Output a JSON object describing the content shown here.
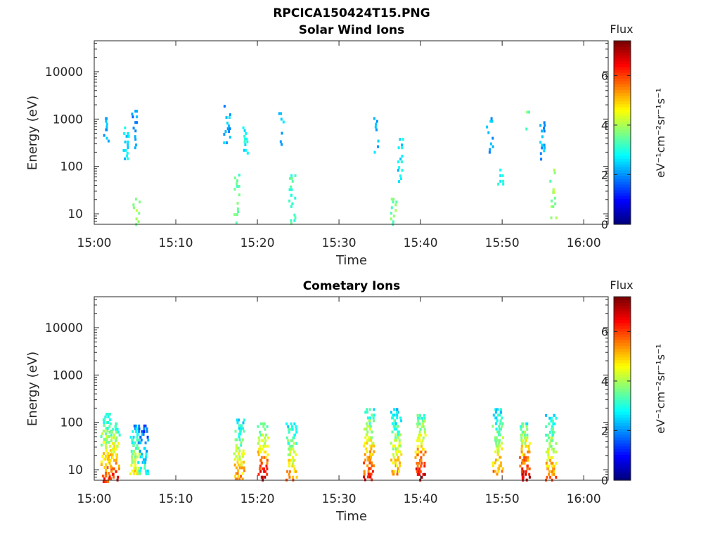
{
  "figure_title": "RPCICA150424T15.PNG",
  "colormap": {
    "stops": [
      "#00007f",
      "#0000ff",
      "#007fff",
      "#00ffff",
      "#7fff7f",
      "#ffff00",
      "#ff7f00",
      "#ff0000",
      "#7f0000"
    ]
  },
  "chart_data": [
    {
      "type": "heatmap",
      "title": "Solar Wind Ions",
      "xlabel": "Time",
      "ylabel": "Energy (eV)",
      "x_unit": "time (HH:MM, 24 Apr 2015)",
      "xlim": [
        "15:00",
        "16:03"
      ],
      "xticks": [
        "15:00",
        "15:10",
        "15:20",
        "15:30",
        "15:40",
        "15:50",
        "16:00"
      ],
      "yscale": "log",
      "ylim": [
        6,
        45000
      ],
      "yticks": [
        "10",
        "100",
        "1000",
        "10000"
      ],
      "colorbar": {
        "title": "Flux",
        "label": "eV⁻¹cm⁻²sr⁻¹s⁻¹",
        "range": [
          0,
          7.4
        ],
        "ticks": [
          "0",
          "2",
          "4",
          "6"
        ]
      },
      "bursts": [
        {
          "t": "15:01.5",
          "e_min": 300,
          "e_max": 1100,
          "flux": 2.2
        },
        {
          "t": "15:04.0",
          "e_min": 150,
          "e_max": 800,
          "flux": 2.6
        },
        {
          "t": "15:05.0",
          "e_min": 250,
          "e_max": 1800,
          "flux": 2.0
        },
        {
          "t": "15:05.2",
          "e_min": 6,
          "e_max": 25,
          "flux": 3.8
        },
        {
          "t": "15:16.3",
          "e_min": 300,
          "e_max": 2000,
          "flux": 2.2
        },
        {
          "t": "15:17.5",
          "e_min": 6,
          "e_max": 70,
          "flux": 3.4
        },
        {
          "t": "15:18.5",
          "e_min": 200,
          "e_max": 700,
          "flux": 2.8
        },
        {
          "t": "15:23.0",
          "e_min": 300,
          "e_max": 1400,
          "flux": 2.4
        },
        {
          "t": "15:24.3",
          "e_min": 6,
          "e_max": 90,
          "flux": 3.2
        },
        {
          "t": "15:34.5",
          "e_min": 200,
          "e_max": 1100,
          "flux": 2.4
        },
        {
          "t": "15:36.7",
          "e_min": 6,
          "e_max": 25,
          "flux": 3.6
        },
        {
          "t": "15:37.5",
          "e_min": 50,
          "e_max": 400,
          "flux": 2.6
        },
        {
          "t": "15:48.5",
          "e_min": 200,
          "e_max": 1100,
          "flux": 2.2
        },
        {
          "t": "15:49.8",
          "e_min": 40,
          "e_max": 90,
          "flux": 2.8
        },
        {
          "t": "15:53.0",
          "e_min": 500,
          "e_max": 1500,
          "flux": 3.6
        },
        {
          "t": "15:55.0",
          "e_min": 150,
          "e_max": 900,
          "flux": 2.2
        },
        {
          "t": "15:56.3",
          "e_min": 7,
          "e_max": 90,
          "flux": 3.8
        }
      ]
    },
    {
      "type": "heatmap",
      "title": "Cometary Ions",
      "xlabel": "Time",
      "ylabel": "Energy (eV)",
      "x_unit": "time (HH:MM, 24 Apr 2015)",
      "xlim": [
        "15:00",
        "16:03"
      ],
      "xticks": [
        "15:00",
        "15:10",
        "15:20",
        "15:30",
        "15:40",
        "15:50",
        "16:00"
      ],
      "yscale": "log",
      "ylim": [
        6,
        45000
      ],
      "yticks": [
        "10",
        "100",
        "1000",
        "10000"
      ],
      "colorbar": {
        "title": "Flux",
        "label": "eV⁻¹cm⁻²sr⁻¹s⁻¹",
        "range": [
          0,
          7.4
        ],
        "ticks": [
          "0",
          "2",
          "4",
          "6"
        ]
      },
      "bursts": [
        {
          "t": "15:01.5",
          "e_min": 6,
          "e_max": 160,
          "flux": 6.0
        },
        {
          "t": "15:02.5",
          "e_min": 6,
          "e_max": 100,
          "flux": 6.6
        },
        {
          "t": "15:05.0",
          "e_min": 8,
          "e_max": 90,
          "flux": 5.0
        },
        {
          "t": "15:06.0",
          "e_min": 8,
          "e_max": 90,
          "flux": 3.2
        },
        {
          "t": "15:17.8",
          "e_min": 6,
          "e_max": 120,
          "flux": 5.6
        },
        {
          "t": "15:20.7",
          "e_min": 6,
          "e_max": 100,
          "flux": 7.0
        },
        {
          "t": "15:24.2",
          "e_min": 6,
          "e_max": 100,
          "flux": 5.6
        },
        {
          "t": "15:33.7",
          "e_min": 6,
          "e_max": 200,
          "flux": 6.4
        },
        {
          "t": "15:37.0",
          "e_min": 8,
          "e_max": 200,
          "flux": 5.4
        },
        {
          "t": "15:40.0",
          "e_min": 6,
          "e_max": 150,
          "flux": 7.0
        },
        {
          "t": "15:49.5",
          "e_min": 8,
          "e_max": 200,
          "flux": 5.6
        },
        {
          "t": "15:52.8",
          "e_min": 6,
          "e_max": 100,
          "flux": 7.0
        },
        {
          "t": "15:56.0",
          "e_min": 6,
          "e_max": 150,
          "flux": 5.8
        }
      ]
    }
  ]
}
